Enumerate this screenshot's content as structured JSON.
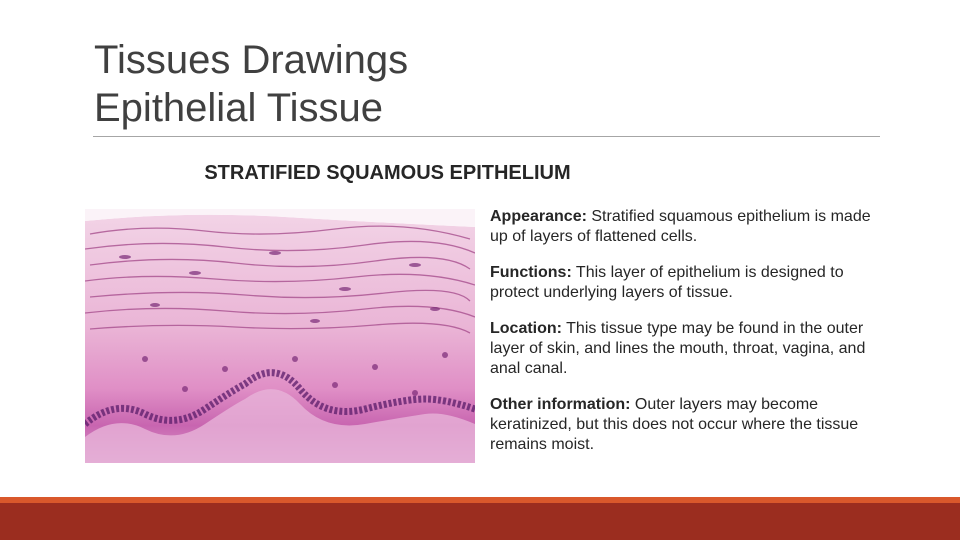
{
  "header": {
    "title": [
      "Tissues Drawings",
      "Epithelial Tissue"
    ]
  },
  "subtitle": "STRATIFIED SQUAMOUS EPITHELIUM",
  "items": [
    {
      "label": "Appearance:",
      "text": "Stratified squamous epithelium is made up of layers of flattened cells."
    },
    {
      "label": "Functions:",
      "text": "This layer of epithelium is designed to protect underlying layers of tissue."
    },
    {
      "label": "Location:",
      "text": "This tissue type may be found in the outer layer of skin, and lines the mouth, throat, vagina, and anal canal."
    },
    {
      "label": "Other information:",
      "text": "Outer layers may become keratinized, but this does not occur where the tissue remains moist."
    }
  ]
}
